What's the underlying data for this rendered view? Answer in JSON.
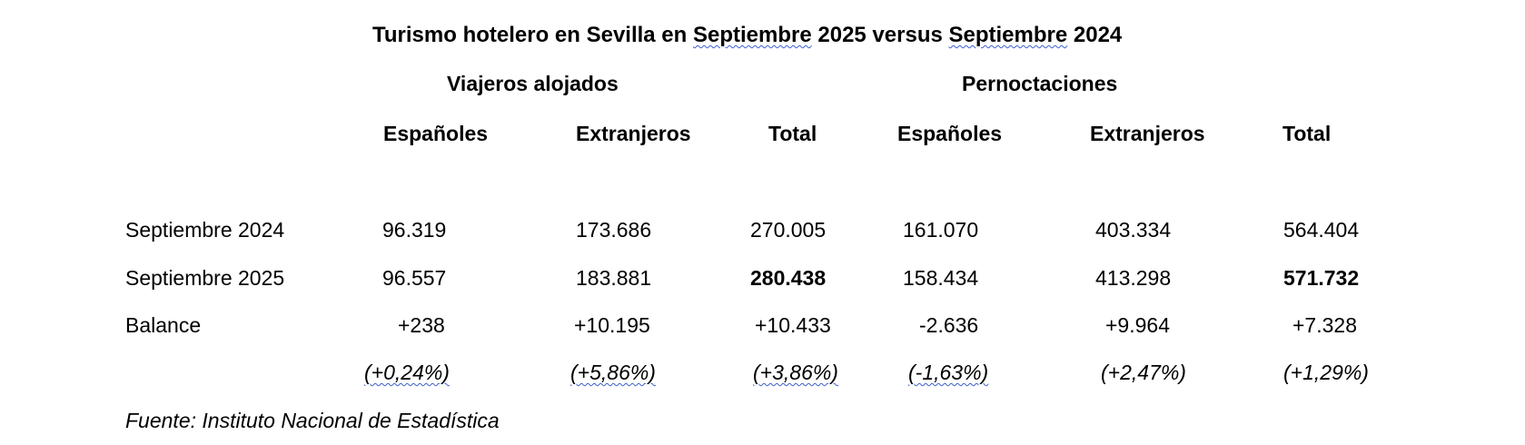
{
  "title": {
    "part1": "Turismo hotelero en Sevilla en ",
    "word1": "Septiembre",
    "part2": " 2025 versus ",
    "word2": "Septiembre",
    "part3": " 2024"
  },
  "groups": {
    "viajeros": "Viajeros alojados",
    "pernoctaciones": "Pernoctaciones"
  },
  "columns": [
    "Españoles",
    "Extranjeros",
    "Total",
    "Españoles",
    "Extranjeros",
    "Total"
  ],
  "rows": {
    "sep2024": {
      "label": "Septiembre 2024",
      "values": [
        "96.319",
        "173.686",
        "270.005",
        "161.070",
        "403.334",
        "564.404"
      ]
    },
    "sep2025": {
      "label": "Septiembre 2025",
      "values": [
        "96.557",
        "183.881",
        "280.438",
        "158.434",
        "413.298",
        "571.732"
      ]
    },
    "balance": {
      "label": "Balance",
      "values": [
        "+238",
        "+10.195",
        "+10.433",
        "-2.636",
        "+9.964",
        "+7.328"
      ]
    },
    "percent": {
      "values": [
        "(+0,24%)",
        "(+5,86%)",
        "(+3,86%)",
        "(-1,63%)",
        "(+2,47%)",
        "(+1,29%)"
      ]
    }
  },
  "source": "Fuente: Instituto Nacional de Estadística"
}
